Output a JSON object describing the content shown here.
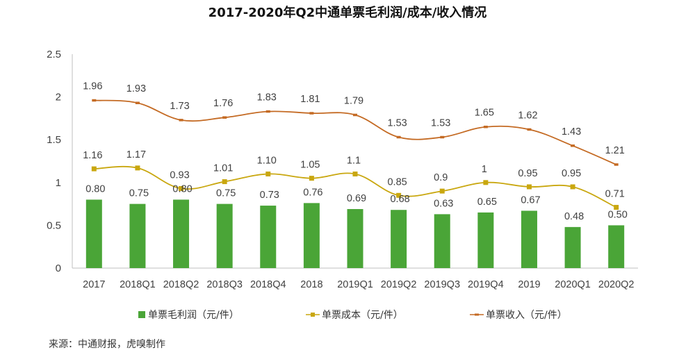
{
  "colors": {
    "bar": "#4aa537",
    "cost_line": "#c9a70f",
    "revenue_line": "#c46a23",
    "axis": "#bfbfbf"
  },
  "chart_data": {
    "type": "bar",
    "title": "2017-2020年Q2中通单票毛利润/成本/收入情况",
    "categories": [
      "2017",
      "2018Q1",
      "2018Q2",
      "2018Q3",
      "2018Q4",
      "2018",
      "2019Q1",
      "2019Q2",
      "2019Q3",
      "2019Q4",
      "2019",
      "2020Q1",
      "2020Q2"
    ],
    "ylim": [
      0,
      2.5
    ],
    "yticks": [
      "0",
      "0.5",
      "1",
      "1.5",
      "2",
      "2.5"
    ],
    "grid": false,
    "legend_position": "bottom",
    "series": [
      {
        "name": "单票毛利润（元/件）",
        "kind": "bar",
        "values": [
          0.8,
          0.75,
          0.8,
          0.75,
          0.73,
          0.76,
          0.69,
          0.68,
          0.63,
          0.65,
          0.67,
          0.48,
          0.5
        ],
        "labels": [
          "0.80",
          "0.75",
          "0.80",
          "0.75",
          "0.73",
          "0.76",
          "0.69",
          "0.68",
          "0.63",
          "0.65",
          "0.67",
          "0.48",
          "0.50"
        ]
      },
      {
        "name": "单票成本（元/件）",
        "kind": "line-square",
        "values": [
          1.16,
          1.17,
          0.93,
          1.01,
          1.1,
          1.05,
          1.1,
          0.85,
          0.9,
          1,
          0.95,
          0.95,
          0.71
        ],
        "labels": [
          "1.16",
          "1.17",
          "0.93",
          "1.01",
          "1.10",
          "1.05",
          "1.1",
          "0.85",
          "0.9",
          "1",
          "0.95",
          "0.95",
          "0.71"
        ]
      },
      {
        "name": "单票收入（元/件）",
        "kind": "line-dash",
        "values": [
          1.96,
          1.93,
          1.73,
          1.76,
          1.83,
          1.81,
          1.79,
          1.53,
          1.53,
          1.65,
          1.62,
          1.43,
          1.21
        ],
        "labels": [
          "1.96",
          "1.93",
          "1.73",
          "1.76",
          "1.83",
          "1.81",
          "1.79",
          "1.53",
          "1.53",
          "1.65",
          "1.62",
          "1.43",
          "1.21"
        ]
      }
    ]
  },
  "source": "来源：中通财报，虎嗅制作"
}
